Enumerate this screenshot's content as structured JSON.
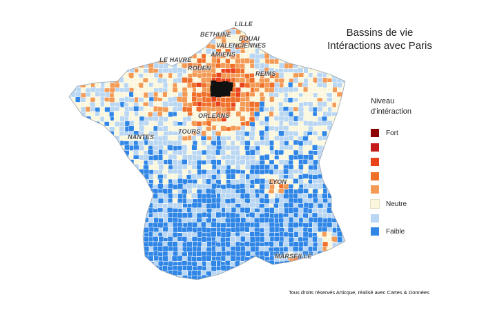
{
  "title": {
    "line1": "Bassins de vie",
    "line2": "Intéractions avec Paris"
  },
  "legend": {
    "title_line1": "Niveau",
    "title_line2": "d'intéraction",
    "items": [
      {
        "label": "Fort",
        "color": "#8b0000"
      },
      {
        "label": "",
        "color": "#c41a1a"
      },
      {
        "label": "",
        "color": "#e8431a"
      },
      {
        "label": "",
        "color": "#f0702a"
      },
      {
        "label": "",
        "color": "#f39a55"
      },
      {
        "label": "Neutre",
        "color": "#fbf7dc"
      },
      {
        "label": "",
        "color": "#b9d6f2"
      },
      {
        "label": "Faible",
        "color": "#2f86e6"
      }
    ]
  },
  "cities": {
    "lille": "LILLE",
    "bethune": "BETHUNE",
    "douai": "DOUAI",
    "valenciennes": "VALENCIENNES",
    "amiens": "AMIENS",
    "le_havre": "LE HAVRE",
    "rouen": "ROUEN",
    "reims": "REIMS",
    "orleans": "ORLEANS",
    "tours": "TOURS",
    "nantes": "NANTES",
    "lyon": "LYON",
    "marseille": "MARSEILLE"
  },
  "paris_color": "#111111",
  "credit": "Tous droits réservés Articque, réalisé avec Cartes & Données"
}
